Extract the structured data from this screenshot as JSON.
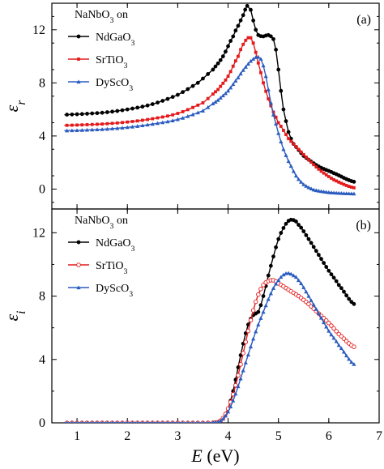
{
  "chart_data": [
    {
      "type": "line",
      "panel_label": "(a)",
      "legend_title": {
        "base": "NaNbO",
        "sub": "3",
        "tail": " on"
      },
      "ylabel": {
        "symbol": "ε",
        "sub": "r"
      },
      "xlim": [
        0.5,
        7
      ],
      "ylim": [
        -1.5,
        14
      ],
      "yticks": [
        0,
        4,
        8,
        12
      ],
      "xticks": [
        1,
        2,
        3,
        4,
        5,
        6,
        7
      ],
      "legend_placement": "top-left",
      "series": [
        {
          "name": {
            "base": "NdGaO",
            "sub": "3"
          },
          "color": "#000000",
          "marker": "circle",
          "x": [
            0.75,
            1.5,
            2.0,
            2.5,
            3.0,
            3.4,
            3.7,
            3.9,
            4.1,
            4.2,
            4.3,
            4.38,
            4.45,
            4.5,
            4.55,
            4.6,
            4.7,
            4.8,
            4.9,
            4.95,
            5.0,
            5.05,
            5.1,
            5.2,
            5.3,
            5.5,
            5.8,
            6.1,
            6.5
          ],
          "y": [
            5.6,
            5.75,
            6.0,
            6.4,
            7.1,
            8.0,
            9.0,
            10.0,
            11.5,
            12.3,
            13.1,
            13.8,
            13.5,
            12.7,
            12.0,
            11.6,
            11.5,
            11.6,
            11.3,
            10.5,
            9.0,
            7.4,
            6.0,
            4.3,
            3.4,
            2.5,
            1.7,
            1.2,
            0.55
          ]
        },
        {
          "name": {
            "base": "SrTiO",
            "sub": "3"
          },
          "color": "#e41a1c",
          "marker": "square",
          "x": [
            0.75,
            1.5,
            2.0,
            2.5,
            3.0,
            3.5,
            3.8,
            4.0,
            4.2,
            4.3,
            4.4,
            4.45,
            4.5,
            4.55,
            4.6,
            4.7,
            4.8,
            4.9,
            5.0,
            5.2,
            5.5,
            5.8,
            6.1,
            6.5
          ],
          "y": [
            4.8,
            4.9,
            5.05,
            5.3,
            5.7,
            6.5,
            7.5,
            8.5,
            10.0,
            10.9,
            11.4,
            11.4,
            11.0,
            10.3,
            9.5,
            8.0,
            6.8,
            5.8,
            5.0,
            3.8,
            2.6,
            1.5,
            0.7,
            0.1
          ]
        },
        {
          "name": {
            "base": "DyScO",
            "sub": "3"
          },
          "color": "#2b5cbf",
          "marker": "triangle",
          "x": [
            0.75,
            1.5,
            2.0,
            2.5,
            3.0,
            3.5,
            3.8,
            4.0,
            4.2,
            4.35,
            4.5,
            4.6,
            4.65,
            4.7,
            4.75,
            4.8,
            4.85,
            4.9,
            5.0,
            5.1,
            5.2,
            5.35,
            5.5,
            5.7,
            6.0,
            6.5
          ],
          "y": [
            4.4,
            4.5,
            4.65,
            4.9,
            5.25,
            5.9,
            6.7,
            7.4,
            8.4,
            9.2,
            9.8,
            9.95,
            9.8,
            9.3,
            8.5,
            7.5,
            6.5,
            5.6,
            4.2,
            3.0,
            2.1,
            1.0,
            0.35,
            -0.05,
            -0.25,
            -0.35
          ]
        }
      ]
    },
    {
      "type": "line",
      "panel_label": "(b)",
      "legend_title": {
        "base": "NaNbO",
        "sub": "3",
        "tail": " on"
      },
      "xlabel": {
        "symbol": "E",
        "unit": " (eV)"
      },
      "ylabel": {
        "symbol": "ε",
        "sub": "i"
      },
      "xlim": [
        0.5,
        7
      ],
      "ylim": [
        0,
        13.5
      ],
      "yticks": [
        0,
        4,
        8,
        12
      ],
      "xticks": [
        1,
        2,
        3,
        4,
        5,
        6,
        7
      ],
      "legend_placement": "top-left",
      "series": [
        {
          "name": {
            "base": "NdGaO",
            "sub": "3"
          },
          "color": "#000000",
          "marker": "circle",
          "x": [
            0.75,
            2.0,
            3.0,
            3.6,
            3.8,
            3.9,
            4.0,
            4.1,
            4.2,
            4.3,
            4.4,
            4.5,
            4.55,
            4.6,
            4.7,
            4.8,
            4.9,
            5.0,
            5.1,
            5.2,
            5.3,
            5.4,
            5.6,
            5.8,
            6.0,
            6.2,
            6.5
          ],
          "y": [
            0,
            0,
            0,
            0,
            0.05,
            0.3,
            0.9,
            2.0,
            3.5,
            5.0,
            6.2,
            6.8,
            6.9,
            7.0,
            8.0,
            9.3,
            10.5,
            11.6,
            12.3,
            12.75,
            12.8,
            12.5,
            11.6,
            10.6,
            9.6,
            8.7,
            7.5
          ]
        },
        {
          "name": {
            "base": "SrTiO",
            "sub": "3"
          },
          "color": "#e41a1c",
          "marker": "open-circle",
          "x": [
            0.75,
            2.0,
            3.0,
            3.6,
            3.8,
            3.9,
            4.0,
            4.1,
            4.2,
            4.3,
            4.4,
            4.5,
            4.6,
            4.7,
            4.8,
            4.9,
            5.0,
            5.2,
            5.4,
            5.6,
            5.8,
            6.0,
            6.2,
            6.5
          ],
          "y": [
            0,
            0,
            0,
            0,
            0.05,
            0.3,
            0.9,
            1.8,
            3.0,
            4.4,
            5.8,
            7.1,
            8.1,
            8.7,
            8.95,
            9.0,
            8.8,
            8.4,
            8.0,
            7.5,
            6.9,
            6.3,
            5.6,
            4.8
          ]
        },
        {
          "name": {
            "base": "DyScO",
            "sub": "3"
          },
          "color": "#2b5cbf",
          "marker": "triangle",
          "x": [
            0.75,
            2.0,
            3.0,
            3.6,
            3.8,
            3.9,
            4.0,
            4.1,
            4.2,
            4.3,
            4.4,
            4.5,
            4.6,
            4.7,
            4.8,
            4.9,
            5.0,
            5.1,
            5.2,
            5.3,
            5.4,
            5.6,
            5.8,
            6.0,
            6.2,
            6.5
          ],
          "y": [
            0,
            0,
            0,
            0,
            0.05,
            0.25,
            0.7,
            1.4,
            2.3,
            3.3,
            4.3,
            5.3,
            6.2,
            7.0,
            7.8,
            8.5,
            9.0,
            9.35,
            9.45,
            9.3,
            9.0,
            8.0,
            6.9,
            5.8,
            4.9,
            3.7
          ]
        }
      ]
    }
  ]
}
